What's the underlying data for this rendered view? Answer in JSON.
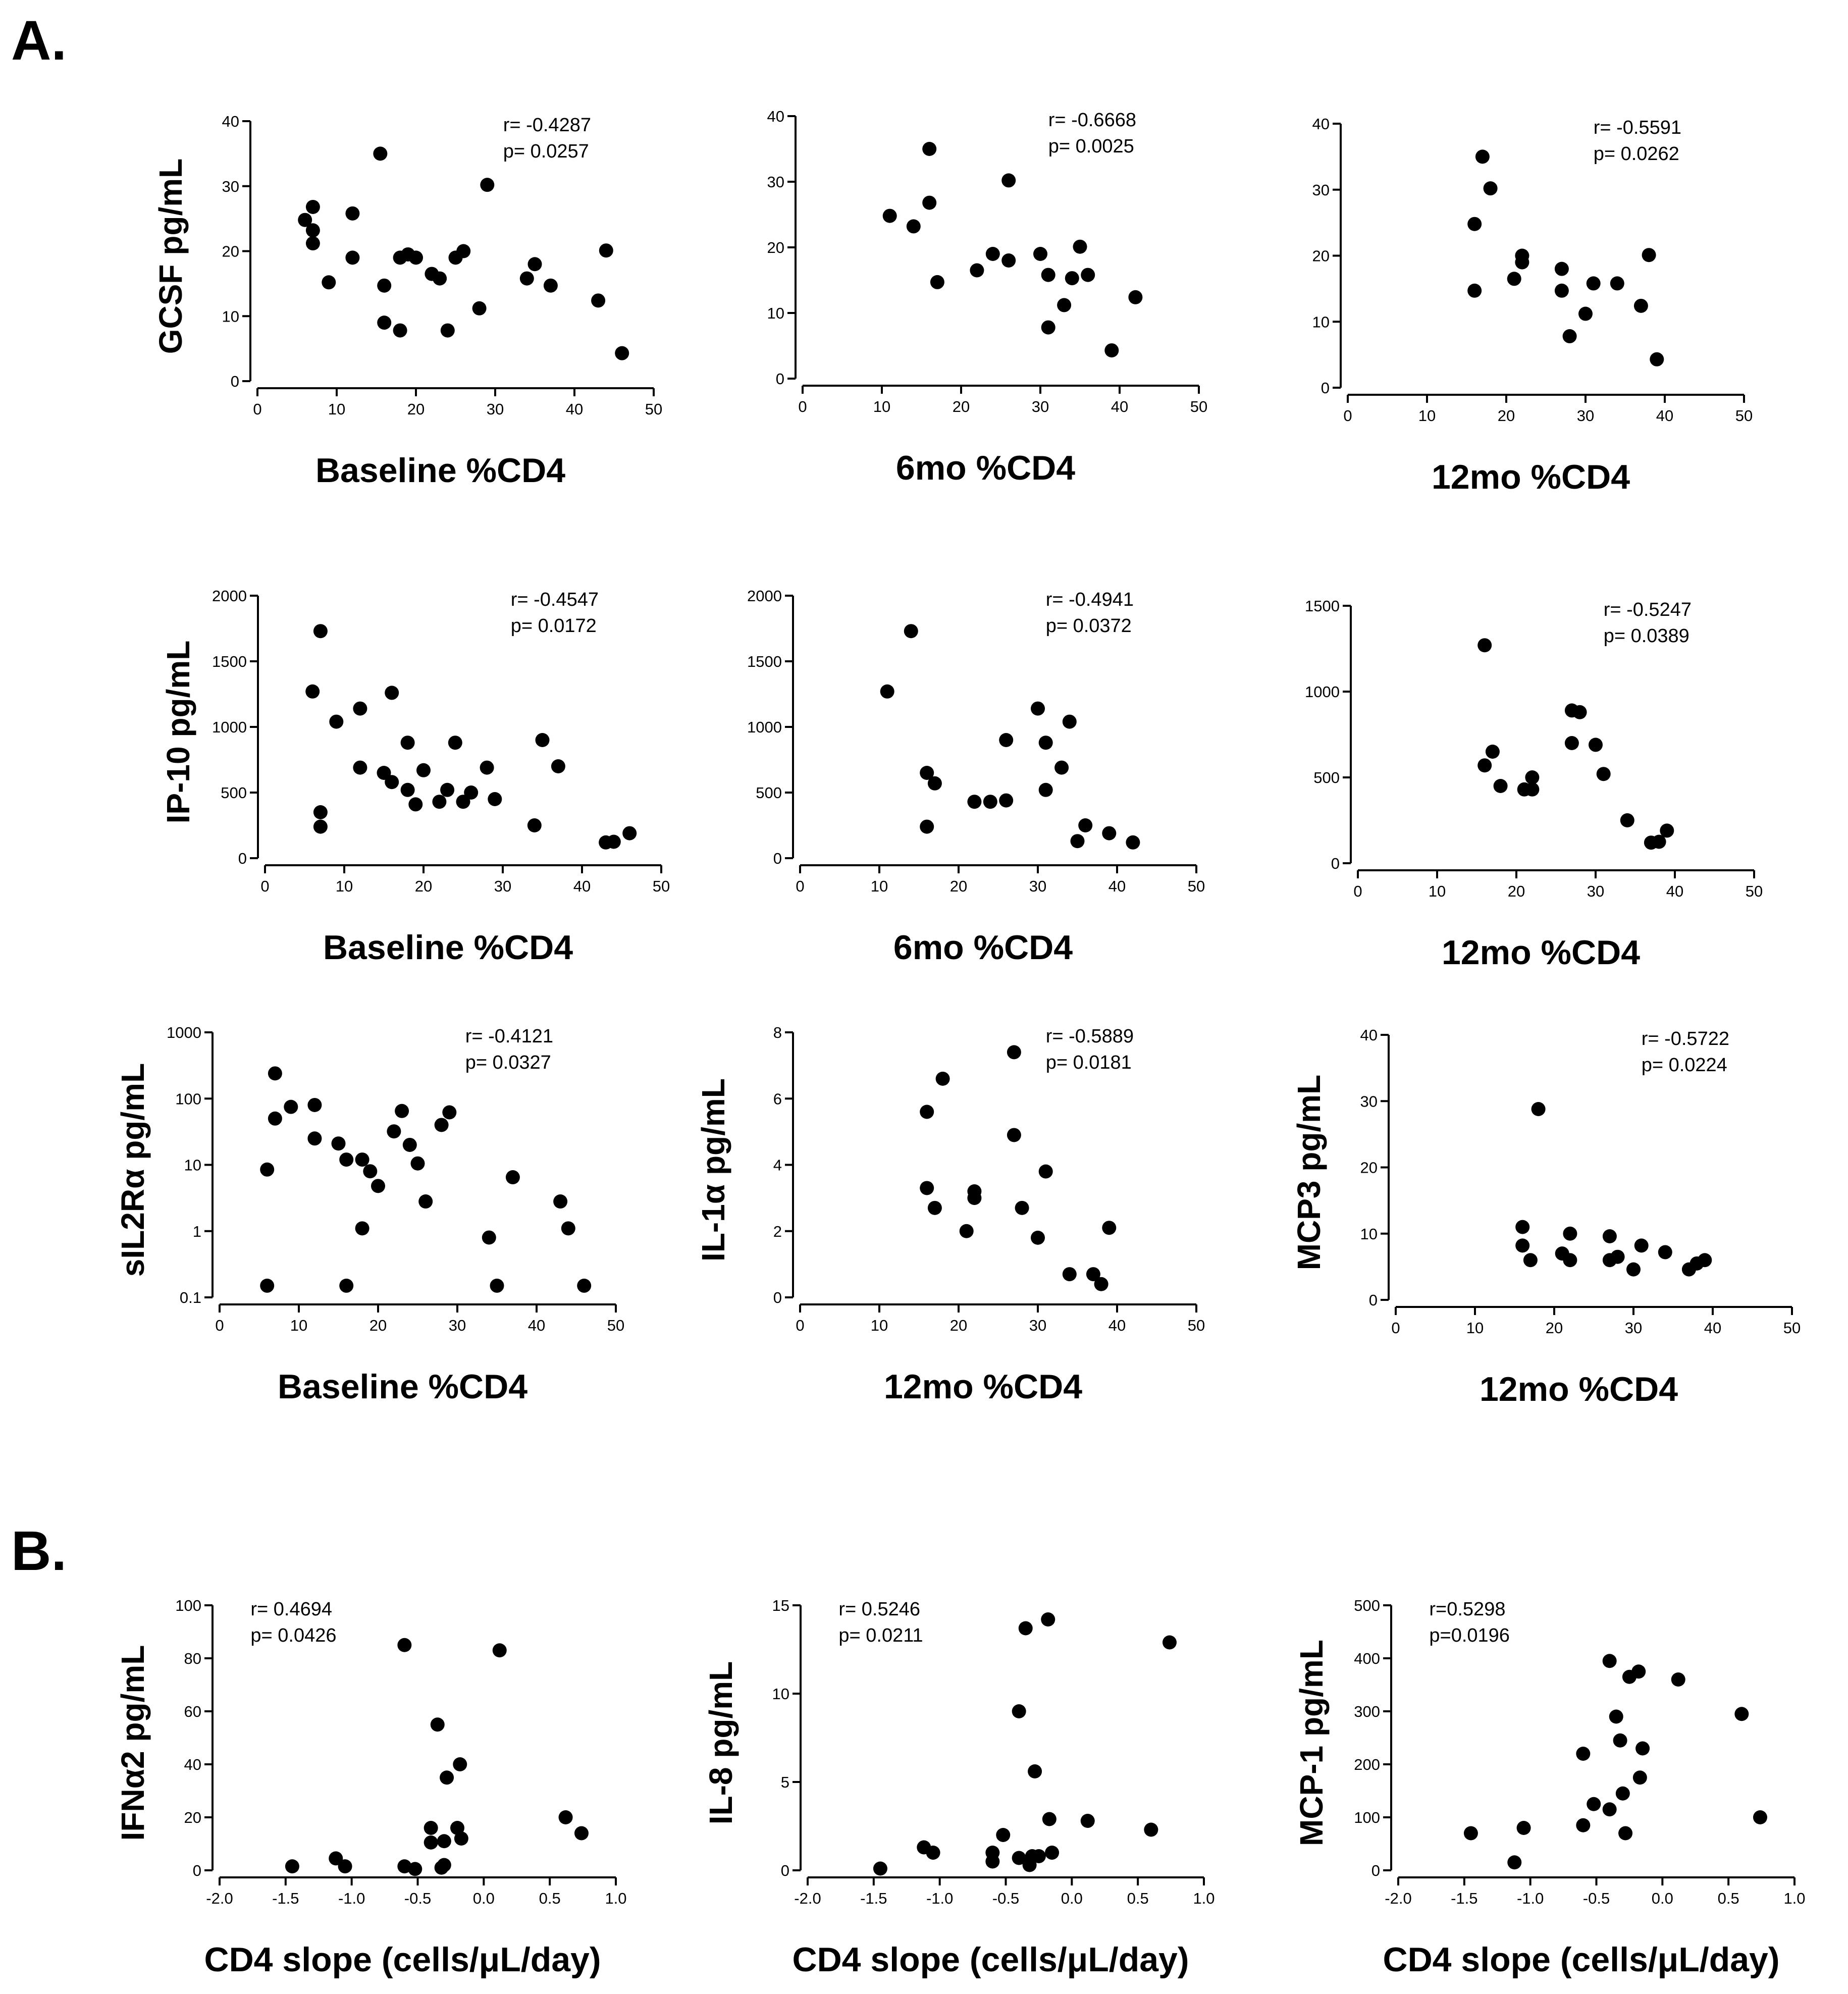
{
  "figure": {
    "panel_labels": [
      "A.",
      "B."
    ]
  },
  "chart_data": [
    {
      "id": "gcsf-baseline",
      "type": "scatter",
      "panel": "A",
      "title": "",
      "xlabel": "Baseline %CD4",
      "ylabel": "GCSF pg/mL",
      "xlim": [
        0,
        50
      ],
      "ylim": [
        0,
        40
      ],
      "xticks": [
        0,
        10,
        20,
        30,
        40,
        50
      ],
      "yticks": [
        0,
        10,
        20,
        30,
        40
      ],
      "annotation": [
        "r= -0.4287",
        "p=  0.0257"
      ],
      "points": [
        [
          6,
          24.8
        ],
        [
          7,
          26.8
        ],
        [
          7,
          23.2
        ],
        [
          7,
          21.2
        ],
        [
          9,
          15.2
        ],
        [
          12,
          25.8
        ],
        [
          12,
          19
        ],
        [
          15.5,
          35
        ],
        [
          16,
          14.7
        ],
        [
          16,
          9
        ],
        [
          18,
          7.8
        ],
        [
          18,
          19
        ],
        [
          19,
          19.5
        ],
        [
          20,
          19
        ],
        [
          22,
          16.5
        ],
        [
          23,
          15.8
        ],
        [
          24,
          7.8
        ],
        [
          25,
          19
        ],
        [
          26,
          20
        ],
        [
          28,
          11.2
        ],
        [
          29,
          30.2
        ],
        [
          34,
          15.8
        ],
        [
          35,
          18
        ],
        [
          37,
          14.7
        ],
        [
          43,
          12.4
        ],
        [
          44,
          20.1
        ],
        [
          46,
          4.3
        ]
      ]
    },
    {
      "id": "gcsf-6mo",
      "type": "scatter",
      "panel": "A",
      "title": "",
      "xlabel": "6mo %CD4",
      "ylabel": "",
      "xlim": [
        0,
        50
      ],
      "ylim": [
        0,
        40
      ],
      "xticks": [
        0,
        10,
        20,
        30,
        40,
        50
      ],
      "yticks": [
        0,
        10,
        20,
        30,
        40
      ],
      "annotation": [
        "r= -0.6668",
        "p=  0.0025"
      ],
      "points": [
        [
          11,
          24.8
        ],
        [
          14,
          23.2
        ],
        [
          16,
          35
        ],
        [
          16,
          26.8
        ],
        [
          17,
          14.7
        ],
        [
          22,
          16.5
        ],
        [
          24,
          19
        ],
        [
          26,
          30.2
        ],
        [
          26,
          18
        ],
        [
          30,
          19
        ],
        [
          31,
          15.8
        ],
        [
          31,
          7.8
        ],
        [
          33,
          11.2
        ],
        [
          34,
          15.3
        ],
        [
          35,
          20.1
        ],
        [
          36,
          15.8
        ],
        [
          39,
          4.3
        ],
        [
          42,
          12.4
        ]
      ]
    },
    {
      "id": "gcsf-12mo",
      "type": "scatter",
      "panel": "A",
      "title": "",
      "xlabel": "12mo %CD4",
      "ylabel": "",
      "xlim": [
        0,
        50
      ],
      "ylim": [
        0,
        40
      ],
      "xticks": [
        0,
        10,
        20,
        30,
        40,
        50
      ],
      "yticks": [
        0,
        10,
        20,
        30,
        40
      ],
      "annotation": [
        "r= -0.5591",
        "p=  0.0262"
      ],
      "points": [
        [
          16,
          24.8
        ],
        [
          16,
          14.7
        ],
        [
          17,
          35
        ],
        [
          18,
          30.2
        ],
        [
          21,
          16.5
        ],
        [
          22,
          20
        ],
        [
          22,
          19
        ],
        [
          27,
          18
        ],
        [
          27,
          14.7
        ],
        [
          28,
          7.8
        ],
        [
          30,
          11.2
        ],
        [
          31,
          15.8
        ],
        [
          34,
          15.8
        ],
        [
          37,
          12.4
        ],
        [
          38,
          20.1
        ],
        [
          39,
          4.3
        ]
      ]
    },
    {
      "id": "ip10-baseline",
      "type": "scatter",
      "panel": "A",
      "title": "",
      "xlabel": "Baseline %CD4",
      "ylabel": "IP-10 pg/mL",
      "xlim": [
        0,
        50
      ],
      "ylim": [
        0,
        2000
      ],
      "xticks": [
        0,
        10,
        20,
        30,
        40,
        50
      ],
      "yticks": [
        0,
        500,
        1000,
        1500,
        2000
      ],
      "annotation": [
        "r= -0.4547",
        "p=  0.0172"
      ],
      "points": [
        [
          6,
          1270
        ],
        [
          7,
          1730
        ],
        [
          7,
          350
        ],
        [
          7,
          240
        ],
        [
          9,
          1040
        ],
        [
          12,
          1140
        ],
        [
          12,
          690
        ],
        [
          15,
          650
        ],
        [
          16,
          1260
        ],
        [
          16,
          580
        ],
        [
          18,
          880
        ],
        [
          18,
          520
        ],
        [
          19,
          410
        ],
        [
          20,
          670
        ],
        [
          22,
          430
        ],
        [
          23,
          520
        ],
        [
          24,
          880
        ],
        [
          25,
          430
        ],
        [
          26,
          500
        ],
        [
          28,
          690
        ],
        [
          29,
          450
        ],
        [
          34,
          250
        ],
        [
          35,
          900
        ],
        [
          37,
          700
        ],
        [
          43,
          120
        ],
        [
          44,
          125
        ],
        [
          46,
          190
        ]
      ]
    },
    {
      "id": "ip10-6mo",
      "type": "scatter",
      "panel": "A",
      "title": "",
      "xlabel": "6mo %CD4",
      "ylabel": "",
      "xlim": [
        0,
        50
      ],
      "ylim": [
        0,
        2000
      ],
      "xticks": [
        0,
        10,
        20,
        30,
        40,
        50
      ],
      "yticks": [
        0,
        500,
        1000,
        1500,
        2000
      ],
      "annotation": [
        "r= -0.4941",
        "p=  0.0372"
      ],
      "points": [
        [
          11,
          1270
        ],
        [
          14,
          1730
        ],
        [
          16,
          650
        ],
        [
          16,
          240
        ],
        [
          17,
          570
        ],
        [
          22,
          430
        ],
        [
          24,
          430
        ],
        [
          26,
          900
        ],
        [
          26,
          440
        ],
        [
          30,
          1140
        ],
        [
          31,
          880
        ],
        [
          31,
          520
        ],
        [
          33,
          690
        ],
        [
          34,
          1040
        ],
        [
          35,
          130
        ],
        [
          36,
          250
        ],
        [
          39,
          190
        ],
        [
          42,
          120
        ]
      ]
    },
    {
      "id": "ip10-12mo",
      "type": "scatter",
      "panel": "A",
      "title": "",
      "xlabel": "12mo %CD4",
      "ylabel": "",
      "xlim": [
        0,
        50
      ],
      "ylim": [
        0,
        1500
      ],
      "xticks": [
        0,
        10,
        20,
        30,
        40,
        50
      ],
      "yticks": [
        0,
        500,
        1000,
        1500
      ],
      "annotation": [
        "r= -0.5247",
        "p=  0.0389"
      ],
      "points": [
        [
          16,
          1270
        ],
        [
          16,
          570
        ],
        [
          17,
          650
        ],
        [
          18,
          450
        ],
        [
          21,
          430
        ],
        [
          22,
          430
        ],
        [
          22,
          500
        ],
        [
          27,
          890
        ],
        [
          27,
          700
        ],
        [
          28,
          880
        ],
        [
          30,
          690
        ],
        [
          31,
          520
        ],
        [
          34,
          250
        ],
        [
          37,
          120
        ],
        [
          38,
          125
        ],
        [
          39,
          190
        ]
      ]
    },
    {
      "id": "sil2ra-baseline",
      "type": "scatter",
      "panel": "A",
      "yscale": "log",
      "title": "",
      "xlabel": "Baseline %CD4",
      "ylabel": "sIL2Rα pg/mL",
      "xlim": [
        0,
        50
      ],
      "ylim": [
        0.1,
        1000
      ],
      "xticks": [
        0,
        10,
        20,
        30,
        40,
        50
      ],
      "yticks": [
        0.1,
        1,
        10,
        100,
        1000
      ],
      "annotation": [
        "r= -0.4121",
        "p=  0.0327"
      ],
      "points": [
        [
          6,
          8.5
        ],
        [
          6,
          0.15
        ],
        [
          7,
          240
        ],
        [
          7,
          50
        ],
        [
          9,
          75
        ],
        [
          12,
          80
        ],
        [
          12,
          25
        ],
        [
          15,
          21
        ],
        [
          16,
          12
        ],
        [
          16,
          0.15
        ],
        [
          18,
          12
        ],
        [
          18,
          1.1
        ],
        [
          19,
          8
        ],
        [
          20,
          4.8
        ],
        [
          22,
          32
        ],
        [
          23,
          65
        ],
        [
          24,
          20
        ],
        [
          25,
          10.5
        ],
        [
          26,
          2.8
        ],
        [
          28,
          40
        ],
        [
          29,
          62
        ],
        [
          34,
          0.8
        ],
        [
          35,
          0.15
        ],
        [
          37,
          6.5
        ],
        [
          43,
          2.8
        ],
        [
          44,
          1.1
        ],
        [
          46,
          0.15
        ]
      ]
    },
    {
      "id": "il1a-12mo",
      "type": "scatter",
      "panel": "A",
      "title": "",
      "xlabel": "12mo %CD4",
      "ylabel": "IL-1α pg/mL",
      "xlim": [
        0,
        50
      ],
      "ylim": [
        0,
        8
      ],
      "xticks": [
        0,
        10,
        20,
        30,
        40,
        50
      ],
      "yticks": [
        0,
        2,
        4,
        6,
        8
      ],
      "annotation": [
        "r= -0.5889",
        "p=  0.0181"
      ],
      "points": [
        [
          16,
          5.6
        ],
        [
          16,
          3.3
        ],
        [
          17,
          2.7
        ],
        [
          18,
          6.6
        ],
        [
          21,
          2
        ],
        [
          22,
          3.2
        ],
        [
          22,
          3
        ],
        [
          27,
          7.4
        ],
        [
          27,
          4.9
        ],
        [
          28,
          2.7
        ],
        [
          30,
          1.8
        ],
        [
          31,
          3.8
        ],
        [
          34,
          0.7
        ],
        [
          37,
          0.7
        ],
        [
          38,
          0.4
        ],
        [
          39,
          2.1
        ]
      ]
    },
    {
      "id": "mcp3-12mo",
      "type": "scatter",
      "panel": "A",
      "title": "",
      "xlabel": "12mo %CD4",
      "ylabel": "MCP3 pg/mL",
      "xlim": [
        0,
        50
      ],
      "ylim": [
        0,
        40
      ],
      "xticks": [
        0,
        10,
        20,
        30,
        40,
        50
      ],
      "yticks": [
        0,
        10,
        20,
        30,
        40
      ],
      "annotation": [
        "r= -0.5722",
        "p=  0.0224"
      ],
      "points": [
        [
          16,
          11
        ],
        [
          16,
          8.2
        ],
        [
          17,
          6
        ],
        [
          18,
          28.8
        ],
        [
          21,
          7
        ],
        [
          22,
          10
        ],
        [
          22,
          6
        ],
        [
          27,
          9.6
        ],
        [
          27,
          6
        ],
        [
          28,
          6.5
        ],
        [
          30,
          4.6
        ],
        [
          31,
          8.2
        ],
        [
          34,
          7.2
        ],
        [
          37,
          4.6
        ],
        [
          38,
          5.5
        ],
        [
          39,
          6
        ]
      ]
    },
    {
      "id": "ifna2-slope",
      "type": "scatter",
      "panel": "B",
      "title": "",
      "xlabel": "CD4 slope (cells/μL/day)",
      "ylabel": "IFNα2 pg/mL",
      "xlim": [
        -2.0,
        1.0
      ],
      "ylim": [
        0,
        100
      ],
      "xticks": [
        "-2.0",
        "-1.5",
        "-1.0",
        "-0.5",
        "0.0",
        "0.5",
        "1.0"
      ],
      "yticks": [
        0,
        20,
        40,
        60,
        80,
        100
      ],
      "annotation": [
        "r= 0.4694",
        "p= 0.0426"
      ],
      "points": [
        [
          -1.45,
          1.5
        ],
        [
          -1.12,
          4.5
        ],
        [
          -1.05,
          1.5
        ],
        [
          -0.6,
          85
        ],
        [
          -0.6,
          1.5
        ],
        [
          -0.52,
          0.5
        ],
        [
          -0.4,
          16
        ],
        [
          -0.4,
          10.5
        ],
        [
          -0.35,
          55
        ],
        [
          -0.32,
          1
        ],
        [
          -0.3,
          2
        ],
        [
          -0.3,
          11
        ],
        [
          -0.28,
          35
        ],
        [
          -0.2,
          16
        ],
        [
          -0.18,
          40
        ],
        [
          -0.17,
          12
        ],
        [
          0.12,
          83
        ],
        [
          0.62,
          20
        ],
        [
          0.74,
          14
        ]
      ]
    },
    {
      "id": "il8-slope",
      "type": "scatter",
      "panel": "B",
      "title": "",
      "xlabel": "CD4 slope (cells/μL/day)",
      "ylabel": "IL-8 pg/mL",
      "xlim": [
        -2.0,
        1.0
      ],
      "ylim": [
        0,
        15
      ],
      "xticks": [
        "-2.0",
        "-1.5",
        "-1.0",
        "-0.5",
        "0.0",
        "0.5",
        "1.0"
      ],
      "yticks": [
        0,
        5,
        10,
        15
      ],
      "annotation": [
        "r= 0.5246",
        "p= 0.0211"
      ],
      "points": [
        [
          -1.45,
          0.1
        ],
        [
          -1.12,
          1.3
        ],
        [
          -1.05,
          1
        ],
        [
          -0.6,
          1
        ],
        [
          -0.6,
          0.5
        ],
        [
          -0.52,
          2
        ],
        [
          -0.4,
          9
        ],
        [
          -0.4,
          0.7
        ],
        [
          -0.35,
          13.7
        ],
        [
          -0.32,
          0.3
        ],
        [
          -0.3,
          0.8
        ],
        [
          -0.28,
          5.6
        ],
        [
          -0.25,
          0.8
        ],
        [
          -0.18,
          14.2
        ],
        [
          -0.17,
          2.9
        ],
        [
          -0.15,
          1
        ],
        [
          0.12,
          2.8
        ],
        [
          0.6,
          2.3
        ],
        [
          0.74,
          12.9
        ]
      ]
    },
    {
      "id": "mcp1-slope",
      "type": "scatter",
      "panel": "B",
      "title": "",
      "xlabel": "CD4 slope (cells/μL/day)",
      "ylabel": "MCP-1 pg/mL",
      "xlim": [
        -2.0,
        1.0
      ],
      "ylim": [
        0,
        500
      ],
      "xticks": [
        "-2.0",
        "-1.5",
        "-1.0",
        "-0.5",
        "0.0",
        "0.5",
        "1.0"
      ],
      "yticks": [
        0,
        100,
        200,
        300,
        400,
        500
      ],
      "annotation": [
        "r=0.5298",
        "p=0.0196"
      ],
      "points": [
        [
          -1.45,
          70
        ],
        [
          -1.12,
          15
        ],
        [
          -1.05,
          80
        ],
        [
          -0.6,
          85
        ],
        [
          -0.6,
          220
        ],
        [
          -0.52,
          125
        ],
        [
          -0.4,
          395
        ],
        [
          -0.4,
          115
        ],
        [
          -0.35,
          290
        ],
        [
          -0.32,
          245
        ],
        [
          -0.3,
          145
        ],
        [
          -0.28,
          70
        ],
        [
          -0.25,
          365
        ],
        [
          -0.18,
          375
        ],
        [
          -0.17,
          175
        ],
        [
          -0.15,
          230
        ],
        [
          0.12,
          360
        ],
        [
          0.6,
          295
        ],
        [
          0.74,
          100
        ]
      ]
    }
  ]
}
